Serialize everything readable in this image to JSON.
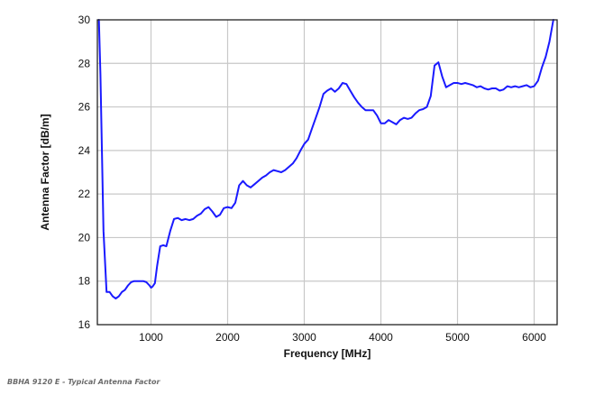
{
  "caption": "BBHA 9120 E - Typical Antenna Factor",
  "chart_data": {
    "type": "line",
    "title": "",
    "xlabel": "Frequency [MHz]",
    "ylabel": "Antenna Factor [dB/m]",
    "xlim": [
      300,
      6300
    ],
    "ylim": [
      16,
      30
    ],
    "xticks": [
      1000,
      2000,
      3000,
      4000,
      5000,
      6000
    ],
    "yticks": [
      16,
      18,
      20,
      22,
      24,
      26,
      28,
      30
    ],
    "grid": true,
    "legend": "none",
    "line_color": "#1a1aff",
    "series": [
      {
        "x": [
          320,
          340,
          380,
          420,
          460,
          500,
          540,
          580,
          620,
          660,
          700,
          740,
          780,
          820,
          860,
          900,
          940,
          980,
          1000,
          1020,
          1050,
          1080,
          1120,
          1160,
          1200,
          1250,
          1300,
          1350,
          1400,
          1450,
          1500,
          1550,
          1600,
          1650,
          1700,
          1750,
          1800,
          1850,
          1900,
          1950,
          2000,
          2050,
          2100,
          2150,
          2200,
          2250,
          2300,
          2350,
          2400,
          2450,
          2500,
          2550,
          2600,
          2650,
          2700,
          2750,
          2800,
          2850,
          2900,
          2950,
          3000,
          3050,
          3100,
          3150,
          3200,
          3250,
          3300,
          3350,
          3400,
          3450,
          3500,
          3550,
          3600,
          3650,
          3700,
          3750,
          3800,
          3850,
          3900,
          3950,
          4000,
          4050,
          4100,
          4150,
          4200,
          4250,
          4300,
          4350,
          4400,
          4450,
          4500,
          4550,
          4600,
          4650,
          4700,
          4750,
          4800,
          4850,
          4900,
          4950,
          5000,
          5050,
          5100,
          5150,
          5200,
          5250,
          5300,
          5350,
          5400,
          5450,
          5500,
          5550,
          5600,
          5650,
          5700,
          5750,
          5800,
          5850,
          5900,
          5950,
          6000,
          6050,
          6100,
          6150,
          6200,
          6250
        ],
        "values": [
          30.0,
          27.5,
          20.3,
          17.5,
          17.5,
          17.3,
          17.2,
          17.3,
          17.5,
          17.6,
          17.8,
          17.95,
          18.0,
          18.0,
          18.0,
          18.0,
          17.95,
          17.8,
          17.7,
          17.75,
          17.9,
          18.7,
          19.6,
          19.65,
          19.6,
          20.3,
          20.85,
          20.9,
          20.8,
          20.85,
          20.8,
          20.85,
          21.0,
          21.1,
          21.3,
          21.4,
          21.2,
          20.95,
          21.05,
          21.35,
          21.4,
          21.35,
          21.6,
          22.4,
          22.6,
          22.4,
          22.3,
          22.45,
          22.6,
          22.75,
          22.85,
          23.0,
          23.1,
          23.05,
          23.0,
          23.1,
          23.25,
          23.4,
          23.65,
          24.0,
          24.3,
          24.5,
          25.0,
          25.5,
          26.0,
          26.6,
          26.75,
          26.85,
          26.7,
          26.85,
          27.1,
          27.05,
          26.75,
          26.45,
          26.2,
          26.0,
          25.85,
          25.85,
          25.85,
          25.6,
          25.25,
          25.25,
          25.4,
          25.3,
          25.2,
          25.4,
          25.5,
          25.45,
          25.5,
          25.7,
          25.85,
          25.9,
          26.0,
          26.5,
          27.9,
          28.05,
          27.4,
          26.9,
          27.0,
          27.1,
          27.1,
          27.05,
          27.1,
          27.05,
          27.0,
          26.9,
          26.95,
          26.85,
          26.8,
          26.85,
          26.85,
          26.75,
          26.8,
          26.95,
          26.9,
          26.95,
          26.9,
          26.95,
          27.0,
          26.9,
          26.95,
          27.2,
          27.8,
          28.3,
          29.0,
          30.0
        ]
      }
    ]
  }
}
